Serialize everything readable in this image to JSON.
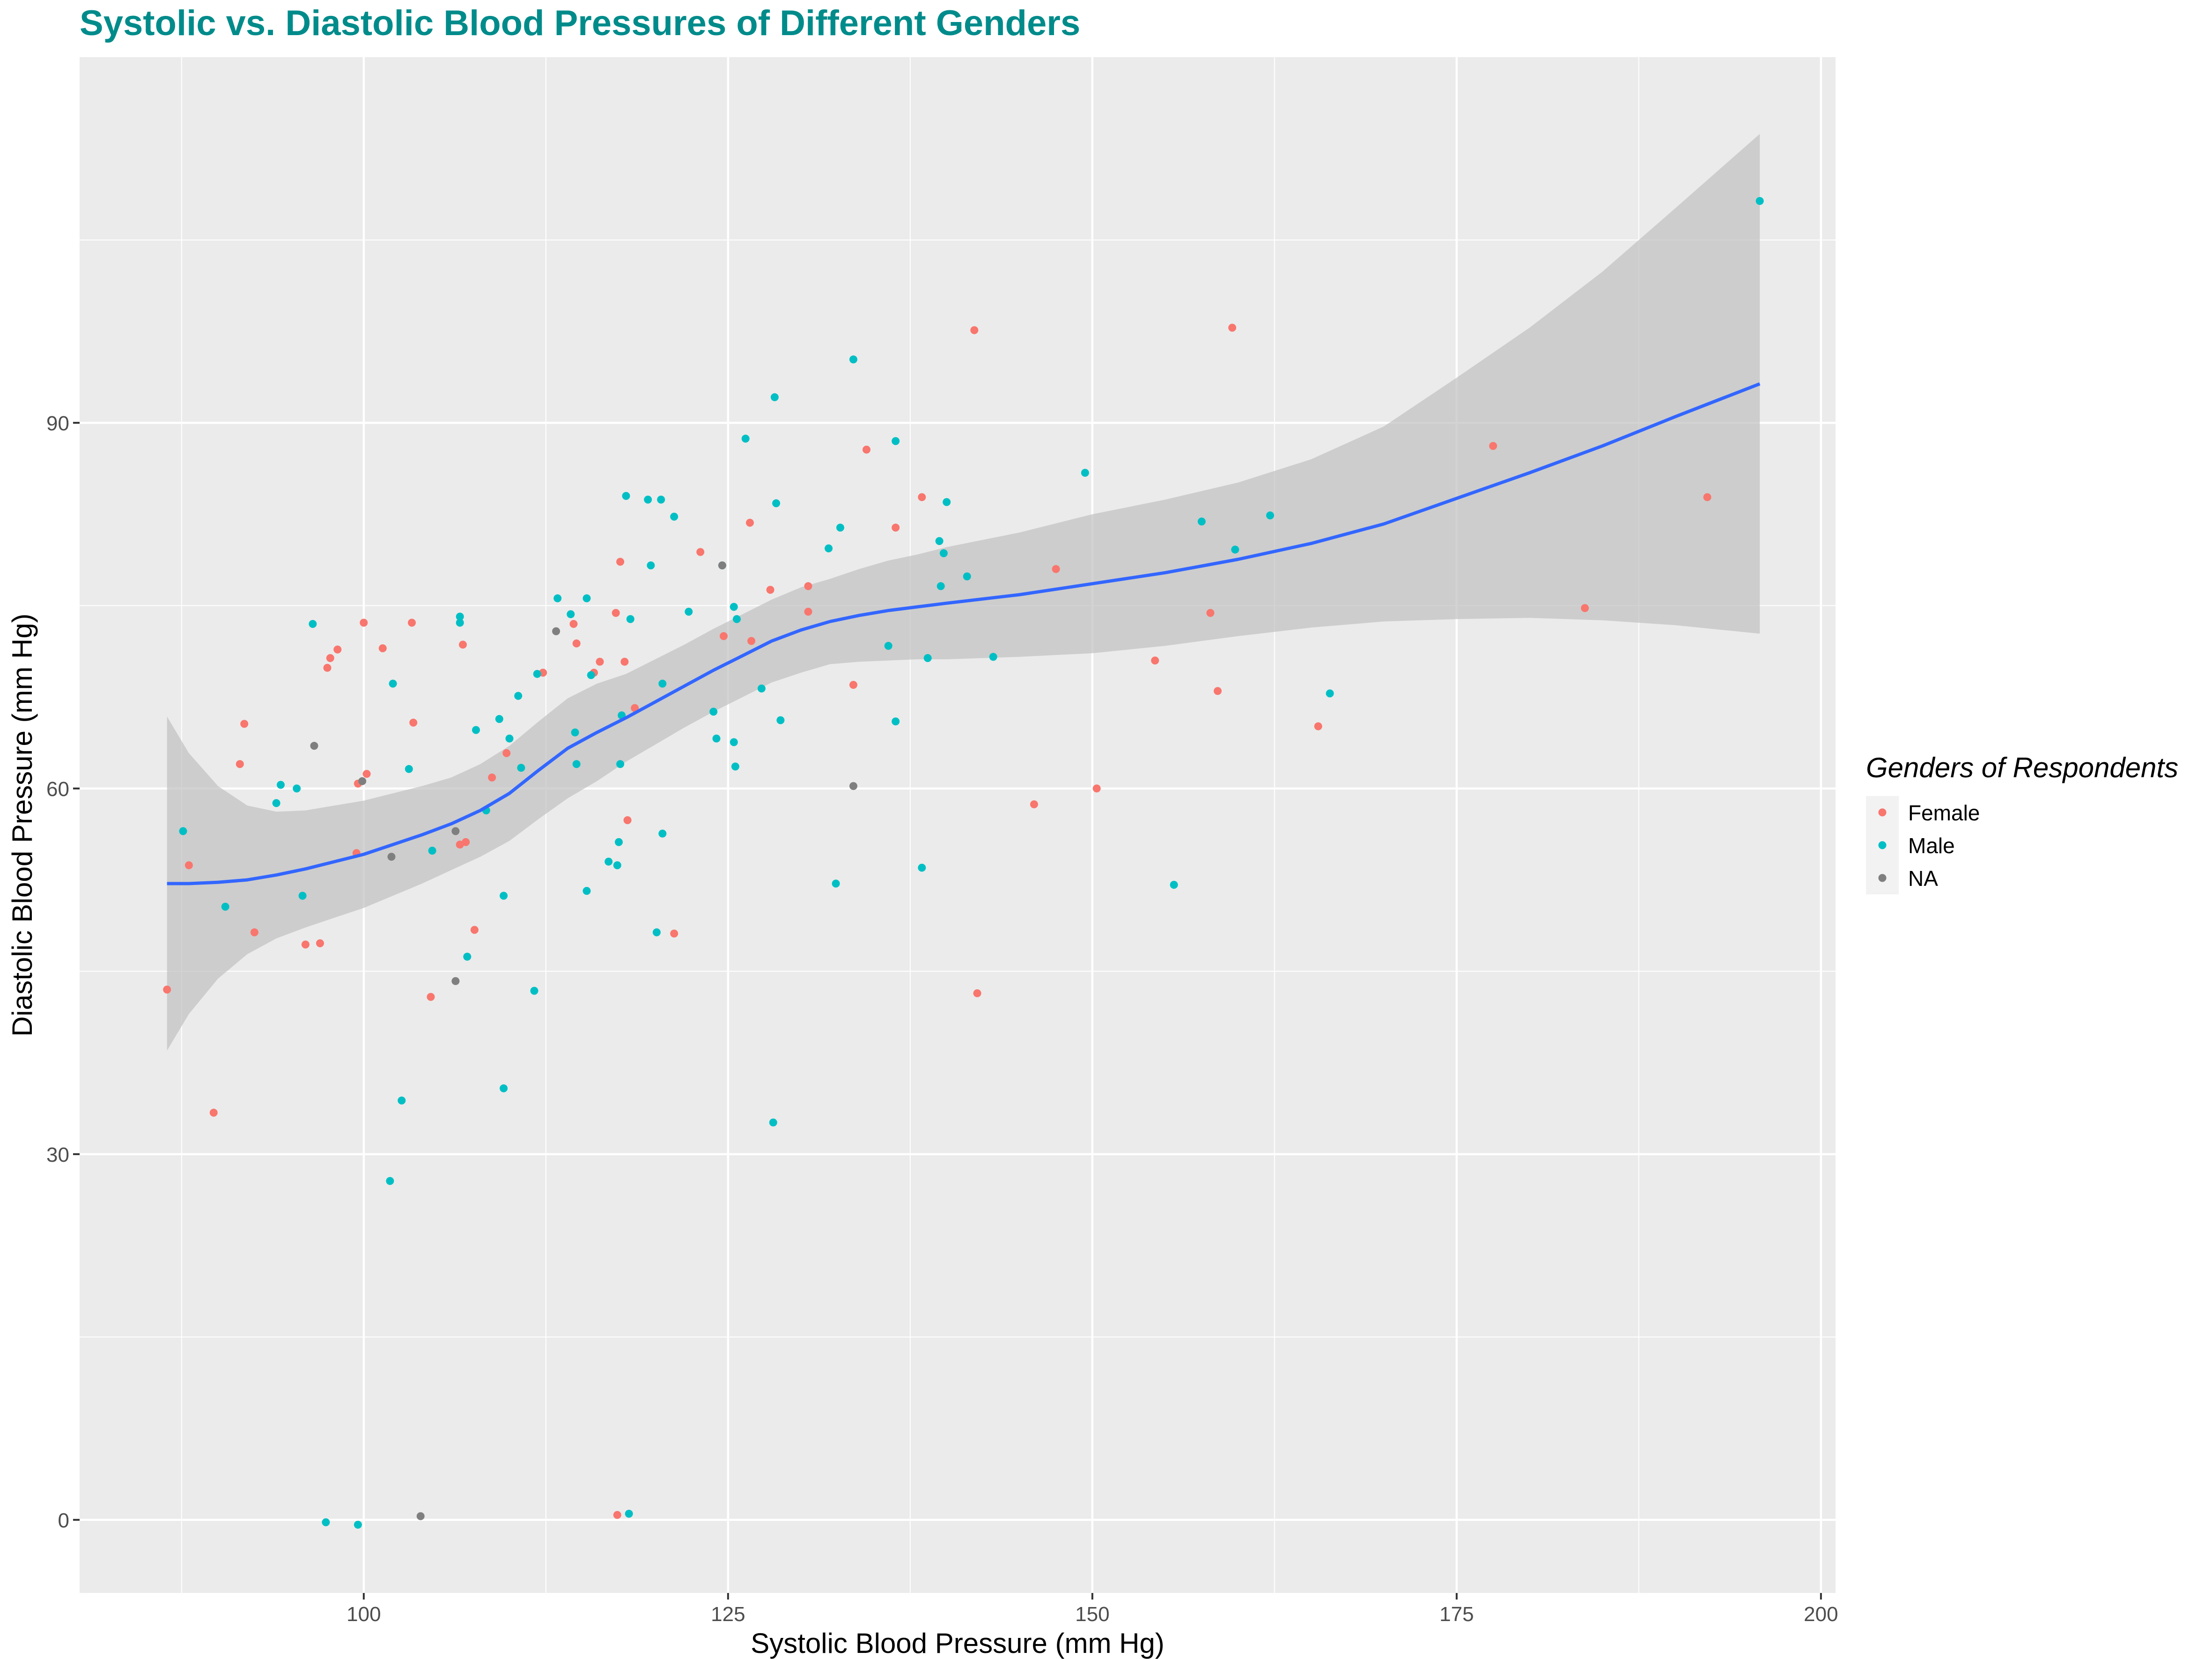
{
  "chart_data": {
    "type": "scatter",
    "title": "Systolic vs. Diastolic Blood Pressures of Different Genders",
    "xlabel": "Systolic Blood Pressure (mm Hg)",
    "ylabel": "Diastolic Blood Pressure (mm Hg)",
    "xlim": [
      80.5,
      201
    ],
    "ylim": [
      -6,
      120
    ],
    "x_ticks": [
      100,
      125,
      150,
      175,
      200
    ],
    "y_ticks": [
      0,
      30,
      60,
      90
    ],
    "grid": true,
    "legend": {
      "title": "Genders of Respondents",
      "placement": "right",
      "entries": [
        "Female",
        "Male",
        "NA"
      ]
    },
    "colors": {
      "Female": "#F8766D",
      "Male": "#00BFC4",
      "NA": "#7F7F7F",
      "smooth": "#3366FF",
      "ribbon": "#BEBEBE",
      "panel": "#EBEBEB",
      "title": "#008B8B"
    },
    "series": [
      {
        "name": "Female",
        "points": [
          [
            86.5,
            43.5
          ],
          [
            88,
            53.7
          ],
          [
            89.7,
            33.4
          ],
          [
            91.5,
            62
          ],
          [
            91.8,
            65.3
          ],
          [
            92.5,
            48.2
          ],
          [
            96,
            47.2
          ],
          [
            97,
            47.3
          ],
          [
            97.5,
            69.9
          ],
          [
            97.7,
            70.7
          ],
          [
            98.2,
            71.4
          ],
          [
            99.5,
            54.7
          ],
          [
            99.6,
            60.4
          ],
          [
            100,
            73.6
          ],
          [
            100.2,
            61.2
          ],
          [
            101.3,
            71.5
          ],
          [
            103.3,
            73.6
          ],
          [
            103.4,
            65.4
          ],
          [
            104.6,
            42.9
          ],
          [
            106.6,
            55.4
          ],
          [
            106.8,
            71.8
          ],
          [
            107,
            55.6
          ],
          [
            107.6,
            48.4
          ],
          [
            108.8,
            60.9
          ],
          [
            109.8,
            62.9
          ],
          [
            112.3,
            69.5
          ],
          [
            114.4,
            73.5
          ],
          [
            114.6,
            71.9
          ],
          [
            115.8,
            69.5
          ],
          [
            116.2,
            70.4
          ],
          [
            117.3,
            74.4
          ],
          [
            117.6,
            78.6
          ],
          [
            117.9,
            70.4
          ],
          [
            118.1,
            57.4
          ],
          [
            118.6,
            66.6
          ],
          [
            117.4,
            0.4
          ],
          [
            121.3,
            48.1
          ],
          [
            123.1,
            79.4
          ],
          [
            124.7,
            72.5
          ],
          [
            126.5,
            81.8
          ],
          [
            126.6,
            72.1
          ],
          [
            127.9,
            76.3
          ],
          [
            130.5,
            76.6
          ],
          [
            130.5,
            74.5
          ],
          [
            133.6,
            68.5
          ],
          [
            134.5,
            87.8
          ],
          [
            136.5,
            81.4
          ],
          [
            138.3,
            83.9
          ],
          [
            141.9,
            97.6
          ],
          [
            142.1,
            43.2
          ],
          [
            146,
            58.7
          ],
          [
            147.5,
            78
          ],
          [
            150.3,
            60
          ],
          [
            154.3,
            70.5
          ],
          [
            158.1,
            74.4
          ],
          [
            158.6,
            68
          ],
          [
            159.6,
            97.8
          ],
          [
            165.5,
            65.1
          ],
          [
            177.5,
            88.1
          ],
          [
            183.8,
            74.8
          ],
          [
            192.2,
            83.9
          ]
        ]
      },
      {
        "name": "Male",
        "points": [
          [
            87.6,
            56.5
          ],
          [
            90.5,
            50.3
          ],
          [
            94,
            58.8
          ],
          [
            94.3,
            60.3
          ],
          [
            95.4,
            60
          ],
          [
            95.8,
            51.2
          ],
          [
            96.5,
            73.5
          ],
          [
            97.4,
            -0.2
          ],
          [
            99.6,
            -0.4
          ],
          [
            101.8,
            27.8
          ],
          [
            102,
            68.6
          ],
          [
            102.6,
            34.4
          ],
          [
            103.1,
            61.6
          ],
          [
            104.7,
            54.9
          ],
          [
            106.6,
            73.6
          ],
          [
            106.6,
            74.1
          ],
          [
            107.1,
            46.2
          ],
          [
            107.7,
            64.8
          ],
          [
            108.4,
            58.2
          ],
          [
            109.3,
            65.7
          ],
          [
            109.6,
            51.2
          ],
          [
            109.6,
            35.4
          ],
          [
            110,
            64.1
          ],
          [
            110.6,
            67.6
          ],
          [
            110.8,
            61.7
          ],
          [
            111.7,
            43.4
          ],
          [
            111.9,
            69.4
          ],
          [
            113.3,
            75.6
          ],
          [
            114.2,
            74.3
          ],
          [
            114.5,
            64.6
          ],
          [
            114.6,
            62
          ],
          [
            115.3,
            75.6
          ],
          [
            115.3,
            51.6
          ],
          [
            115.6,
            69.3
          ],
          [
            116.8,
            54
          ],
          [
            117.4,
            53.7
          ],
          [
            117.5,
            55.6
          ],
          [
            117.6,
            62
          ],
          [
            117.7,
            66
          ],
          [
            118,
            84
          ],
          [
            118.3,
            73.9
          ],
          [
            118.2,
            0.5
          ],
          [
            119.5,
            83.7
          ],
          [
            119.7,
            78.3
          ],
          [
            120.1,
            48.2
          ],
          [
            120.4,
            83.7
          ],
          [
            120.5,
            68.6
          ],
          [
            120.5,
            56.3
          ],
          [
            121.3,
            82.3
          ],
          [
            122.3,
            74.5
          ],
          [
            124,
            66.3
          ],
          [
            124.2,
            64.1
          ],
          [
            124.6,
            78.3
          ],
          [
            125.4,
            74.9
          ],
          [
            125.4,
            63.8
          ],
          [
            125.5,
            61.8
          ],
          [
            125.6,
            73.9
          ],
          [
            126.2,
            88.7
          ],
          [
            127.3,
            68.2
          ],
          [
            128.1,
            32.6
          ],
          [
            128.2,
            92.1
          ],
          [
            128.3,
            83.4
          ],
          [
            128.6,
            65.6
          ],
          [
            131.9,
            79.7
          ],
          [
            132.4,
            52.2
          ],
          [
            132.7,
            81.4
          ],
          [
            133.6,
            95.2
          ],
          [
            136,
            71.7
          ],
          [
            136.5,
            65.5
          ],
          [
            136.5,
            88.5
          ],
          [
            138.3,
            53.5
          ],
          [
            138.7,
            70.7
          ],
          [
            139.5,
            80.3
          ],
          [
            139.6,
            76.6
          ],
          [
            139.8,
            79.3
          ],
          [
            140,
            83.5
          ],
          [
            141.4,
            77.4
          ],
          [
            143.2,
            70.8
          ],
          [
            149.5,
            85.9
          ],
          [
            155.6,
            52.1
          ],
          [
            157.5,
            81.9
          ],
          [
            159.8,
            79.6
          ],
          [
            162.2,
            82.4
          ],
          [
            166.3,
            67.8
          ],
          [
            195.8,
            108.2
          ]
        ]
      },
      {
        "name": "NA",
        "points": [
          [
            96.6,
            63.5
          ],
          [
            99.9,
            60.6
          ],
          [
            101.9,
            54.4
          ],
          [
            103.9,
            0.3
          ],
          [
            106.3,
            44.2
          ],
          [
            106.3,
            56.5
          ],
          [
            113.2,
            72.9
          ],
          [
            124.6,
            78.3
          ],
          [
            133.6,
            60.2
          ]
        ]
      }
    ],
    "smooth_line": {
      "x": [
        86.5,
        88,
        90,
        92,
        94,
        96,
        98,
        100,
        102,
        104,
        106,
        108,
        110,
        112,
        114,
        116,
        118,
        120,
        122,
        124,
        126,
        128,
        130,
        132,
        134,
        136,
        138,
        140,
        145,
        150,
        155,
        160,
        165,
        170,
        175,
        180,
        185,
        190,
        195.8
      ],
      "y": [
        52.2,
        52.2,
        52.3,
        52.5,
        52.9,
        53.4,
        54.0,
        54.6,
        55.4,
        56.2,
        57.1,
        58.2,
        59.6,
        61.5,
        63.3,
        64.6,
        65.8,
        67.1,
        68.4,
        69.7,
        70.9,
        72.1,
        73.0,
        73.7,
        74.2,
        74.6,
        74.9,
        75.2,
        75.9,
        76.8,
        77.7,
        78.8,
        80.1,
        81.7,
        83.8,
        85.9,
        88.1,
        90.5,
        93.2
      ],
      "ci_low": [
        38.5,
        41.5,
        44.4,
        46.4,
        47.7,
        48.6,
        49.4,
        50.2,
        51.2,
        52.2,
        53.3,
        54.4,
        55.7,
        57.5,
        59.2,
        60.6,
        62.2,
        63.6,
        65.0,
        66.3,
        67.5,
        68.7,
        69.5,
        70.2,
        70.4,
        70.5,
        70.6,
        70.6,
        70.8,
        71.1,
        71.7,
        72.5,
        73.2,
        73.7,
        73.9,
        74.0,
        73.8,
        73.4,
        72.7
      ],
      "ci_high": [
        65.9,
        62.9,
        60.2,
        58.6,
        58.1,
        58.2,
        58.6,
        59.0,
        59.6,
        60.2,
        60.9,
        62.0,
        63.5,
        65.5,
        67.4,
        68.6,
        69.4,
        70.6,
        71.8,
        73.1,
        74.3,
        75.5,
        76.5,
        77.2,
        78.0,
        78.7,
        79.2,
        79.8,
        81.0,
        82.5,
        83.7,
        85.1,
        87.0,
        89.7,
        93.7,
        97.8,
        102.4,
        107.6,
        113.7
      ]
    }
  }
}
